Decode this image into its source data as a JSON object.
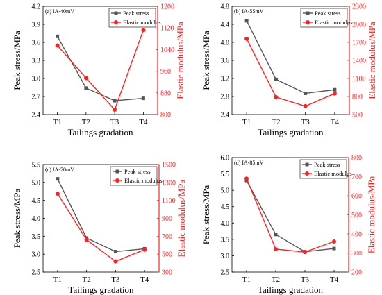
{
  "chart_data": [
    {
      "type": "line",
      "panel_label": "(a) IA-40mV",
      "categories": [
        "T1",
        "T2",
        "T3",
        "T4"
      ],
      "xlabel": "Tailings gradation",
      "ylabel": "Peak stress/MPa",
      "ylabel_right": "Elastic modulus/MPa",
      "ylim": [
        2.4,
        4.2
      ],
      "yticks": [
        "2.4",
        "2.7",
        "3.0",
        "3.3",
        "3.6",
        "3.9",
        "4.2"
      ],
      "ylim_right": [
        800,
        1200
      ],
      "yticks_right": [
        "800",
        "880",
        "960",
        "1040",
        "1120",
        "1200"
      ],
      "series": [
        {
          "name": "Peak stress",
          "axis": "left",
          "color": "#555555",
          "marker": "square",
          "values": [
            3.7,
            2.84,
            2.63,
            2.67
          ]
        },
        {
          "name": "Elastic modulus",
          "axis": "right",
          "color": "#ff2020",
          "marker": "circle",
          "values": [
            1055,
            935,
            818,
            1112
          ]
        }
      ],
      "legend": "top-right"
    },
    {
      "type": "line",
      "panel_label": "(b) IA-55mV",
      "categories": [
        "T1",
        "T2",
        "T3",
        "T4"
      ],
      "xlabel": "Tailings gradation",
      "ylabel": "Peak stress/MPa",
      "ylabel_right": "Elastic modulus/MPa",
      "ylim": [
        2.4,
        4.8
      ],
      "yticks": [
        "2.4",
        "2.8",
        "3.2",
        "3.6",
        "4.0",
        "4.4",
        "4.8"
      ],
      "ylim_right": [
        500,
        2300
      ],
      "yticks_right": [
        "500",
        "800",
        "1100",
        "1400",
        "1700",
        "2000",
        "2300"
      ],
      "series": [
        {
          "name": "Peak stress",
          "axis": "left",
          "color": "#555555",
          "marker": "square",
          "values": [
            4.48,
            3.18,
            2.87,
            2.95
          ]
        },
        {
          "name": "Elastic modulus",
          "axis": "right",
          "color": "#ff2020",
          "marker": "circle",
          "values": [
            1760,
            790,
            640,
            850
          ]
        }
      ],
      "legend": "top-right"
    },
    {
      "type": "line",
      "panel_label": "(c) IA-70mV",
      "categories": [
        "T1",
        "T2",
        "T3",
        "T4"
      ],
      "xlabel": "Tailings gradation",
      "ylabel": "Peak stress/MPa",
      "ylabel_right": "Elastic modulus/MPa",
      "ylim": [
        2.5,
        5.5
      ],
      "yticks": [
        "2.5",
        "3.0",
        "3.5",
        "4.0",
        "4.5",
        "5.0",
        "5.5"
      ],
      "ylim_right": [
        300,
        1500
      ],
      "yticks_right": [
        "300",
        "500",
        "700",
        "900",
        "1100",
        "1300",
        "1500"
      ],
      "series": [
        {
          "name": "Peak stress",
          "axis": "left",
          "color": "#555555",
          "marker": "square",
          "values": [
            5.1,
            3.45,
            3.07,
            3.15
          ]
        },
        {
          "name": "Elastic modulus",
          "axis": "right",
          "color": "#ff2020",
          "marker": "circle",
          "values": [
            1175,
            660,
            420,
            550
          ]
        }
      ],
      "legend": "top-right"
    },
    {
      "type": "line",
      "panel_label": "(d) IA-85mV",
      "categories": [
        "T1",
        "T2",
        "T3",
        "T4"
      ],
      "xlabel": "Tailings gradation",
      "ylabel": "Peak stress/MPa",
      "ylabel_right": "Elastic modulus/MPa",
      "ylim": [
        2.5,
        6.0
      ],
      "yticks": [
        "2.5",
        "3.0",
        "3.5",
        "4.0",
        "4.5",
        "5.0",
        "5.5",
        "6.0"
      ],
      "ylim_right": [
        200,
        800
      ],
      "yticks_right": [
        "200",
        "300",
        "400",
        "500",
        "600",
        "700",
        "800"
      ],
      "series": [
        {
          "name": "Peak stress",
          "axis": "left",
          "color": "#555555",
          "marker": "square",
          "values": [
            5.3,
            3.65,
            3.12,
            3.22
          ]
        },
        {
          "name": "Elastic modulus",
          "axis": "right",
          "color": "#ff2020",
          "marker": "circle",
          "values": [
            690,
            320,
            305,
            360
          ]
        }
      ],
      "legend": "top-right"
    }
  ]
}
